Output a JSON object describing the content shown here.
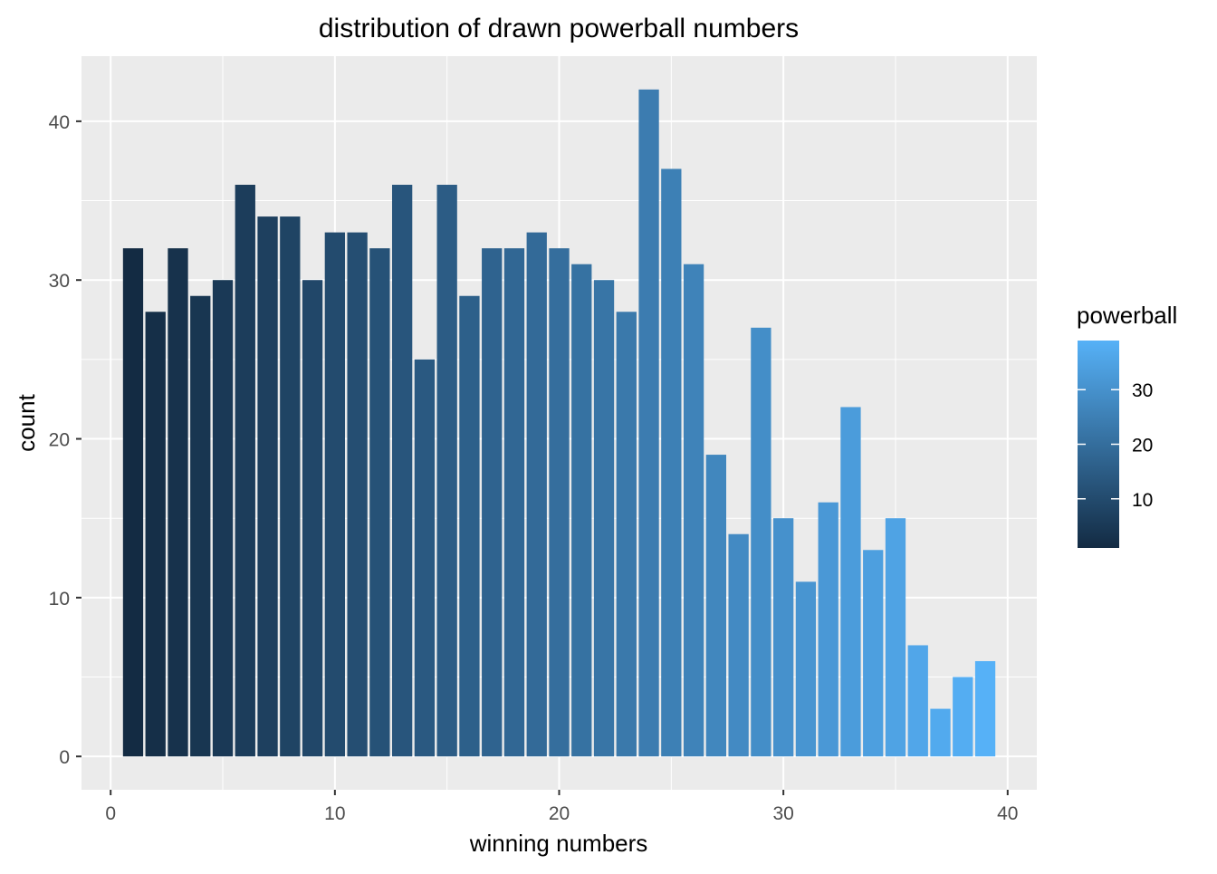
{
  "chart_data": {
    "type": "bar",
    "title": "distribution of drawn powerball numbers",
    "xlabel": "winning numbers",
    "ylabel": "count",
    "x": [
      1,
      2,
      3,
      4,
      5,
      6,
      7,
      8,
      9,
      10,
      11,
      12,
      13,
      14,
      15,
      16,
      17,
      18,
      19,
      20,
      21,
      22,
      23,
      24,
      25,
      26,
      27,
      28,
      29,
      30,
      31,
      32,
      33,
      34,
      35,
      36,
      37,
      38,
      39
    ],
    "values": [
      32,
      28,
      32,
      29,
      30,
      36,
      34,
      34,
      30,
      33,
      33,
      32,
      36,
      25,
      36,
      29,
      32,
      32,
      33,
      32,
      31,
      30,
      28,
      42,
      37,
      31,
      19,
      14,
      27,
      15,
      11,
      16,
      22,
      13,
      15,
      7,
      3,
      5,
      6
    ],
    "xlim": [
      -1.3,
      41.3
    ],
    "ylim": [
      -2.1,
      44.1
    ],
    "x_ticks": [
      0,
      10,
      20,
      30,
      40
    ],
    "x_tick_labels": [
      "0",
      "10",
      "20",
      "30",
      "40"
    ],
    "y_ticks": [
      0,
      10,
      20,
      30,
      40
    ],
    "y_tick_labels": [
      "0",
      "10",
      "20",
      "30",
      "40"
    ],
    "grid": true,
    "panel_background": "#EBEBEB",
    "legend": {
      "title": "powerball",
      "position": "right",
      "type": "colorbar",
      "range": [
        1,
        39
      ],
      "breaks": [
        10,
        20,
        30
      ],
      "break_labels": [
        "10",
        "20",
        "30"
      ],
      "low_color": "#132B43",
      "high_color": "#56B1F7"
    }
  }
}
